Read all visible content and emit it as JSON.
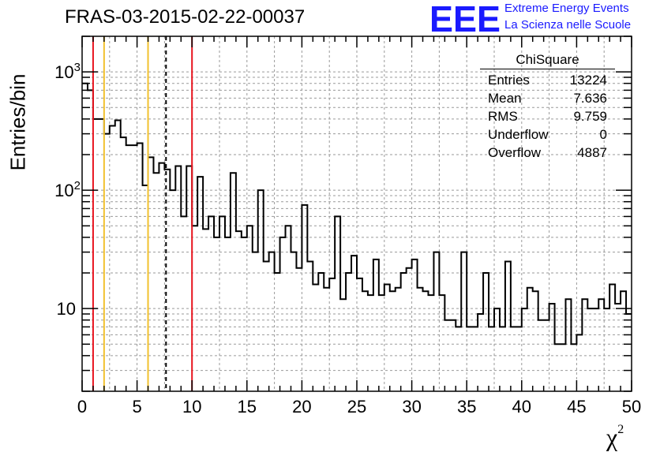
{
  "title": "FRAS-03-2015-02-22-00037",
  "logo": {
    "mark": "EEE",
    "line1": "Extreme Energy Events",
    "line2": "La Scienza nelle Scuole",
    "color": "#1a1aff"
  },
  "stats_box": {
    "title": "ChiSquare",
    "rows": [
      {
        "label": "Entries",
        "value": "13224"
      },
      {
        "label": "Mean",
        "value": "7.636"
      },
      {
        "label": "RMS",
        "value": "9.759"
      },
      {
        "label": "Underflow",
        "value": "0"
      },
      {
        "label": "Overflow",
        "value": "4887"
      }
    ]
  },
  "chart_data": {
    "type": "histogram",
    "xlabel": "χ",
    "xlabel_sup": "2",
    "ylabel": "Entries/bin",
    "xlim": [
      0,
      50
    ],
    "ylim": [
      2,
      2000
    ],
    "log_y": true,
    "grid": true,
    "x_tick_labels": [
      "0",
      "5",
      "10",
      "15",
      "20",
      "25",
      "30",
      "35",
      "40",
      "45",
      "50"
    ],
    "y_tick_labels": [
      {
        "value": 10,
        "base": "10",
        "exp": ""
      },
      {
        "value": 100,
        "base": "10",
        "exp": "2"
      },
      {
        "value": 1000,
        "base": "10",
        "exp": "3"
      }
    ],
    "bin_width": 0.5,
    "bin_start": 0,
    "values": [
      800,
      700,
      400,
      400,
      300,
      350,
      390,
      280,
      240,
      240,
      250,
      110,
      190,
      140,
      170,
      150,
      100,
      160,
      60,
      160,
      50,
      130,
      47,
      60,
      40,
      60,
      40,
      140,
      45,
      40,
      50,
      30,
      100,
      25,
      30,
      20,
      40,
      50,
      30,
      22,
      75,
      25,
      16,
      20,
      15,
      18,
      60,
      12,
      20,
      28,
      18,
      14,
      13,
      26,
      13,
      16,
      14,
      15,
      20,
      22,
      26,
      15,
      14,
      13,
      30,
      13,
      8,
      8,
      7,
      30,
      7,
      7,
      9,
      20,
      7,
      10,
      7,
      25,
      7,
      7,
      10,
      15,
      14,
      8,
      8,
      11,
      5,
      5,
      12,
      5,
      6,
      12,
      10,
      10,
      12,
      10,
      16,
      11,
      14,
      9
    ],
    "vertical_lines": [
      {
        "x": 1.0,
        "color": "#e8141e",
        "style": "solid"
      },
      {
        "x": 2.0,
        "color": "#f2c12e",
        "style": "solid"
      },
      {
        "x": 6.0,
        "color": "#f2c12e",
        "style": "solid"
      },
      {
        "x": 7.636,
        "color": "#000000",
        "style": "dashed"
      },
      {
        "x": 10.0,
        "color": "#e8141e",
        "style": "solid"
      }
    ]
  }
}
